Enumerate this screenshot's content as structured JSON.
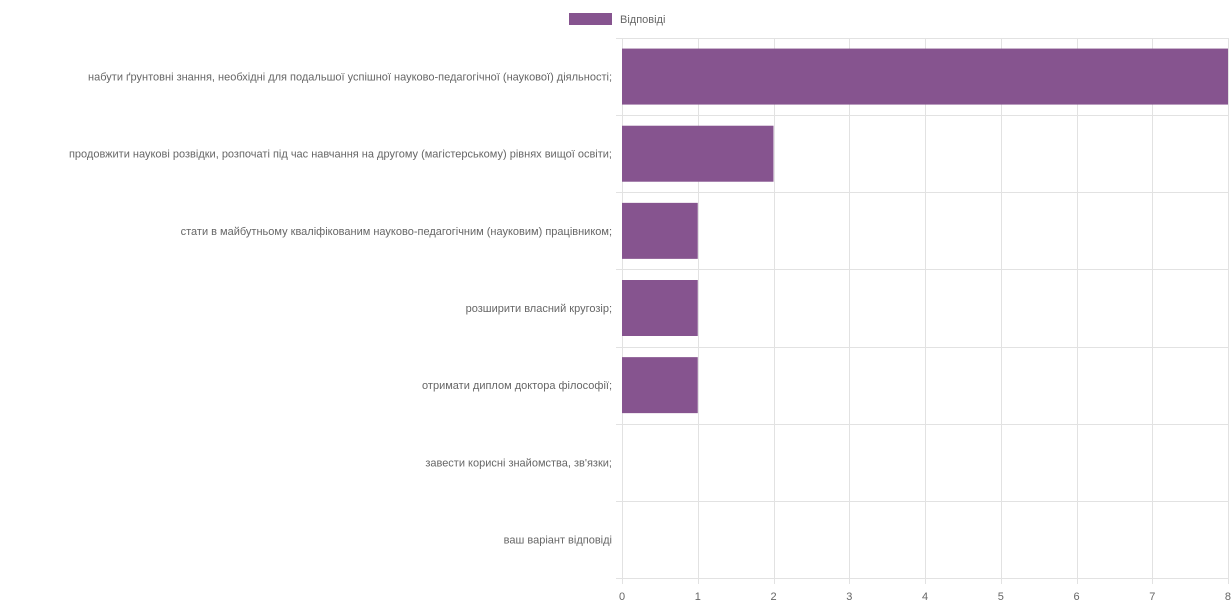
{
  "chart_data": {
    "type": "bar",
    "orientation": "horizontal",
    "categories": [
      "набути ґрунтовні знання, необхідні для подальшої успішної науково-педагогічної (наукової) діяльності;",
      "продовжити наукові розвідки, розпочаті під час навчання на другому (магістерському) рівнях вищої освіти;",
      "стати в майбутньому кваліфікованим науково-педагогічним (науковим) працівником;",
      "розширити власний кругозір;",
      "отримати диплом доктора філософії;",
      "завести корисні знайомства, зв'язки;",
      "ваш варіант відповіді"
    ],
    "series": [
      {
        "name": "Відповіді",
        "values": [
          8,
          2,
          1,
          1,
          1,
          0,
          0
        ],
        "color": "#86548f"
      }
    ],
    "xlim": [
      0,
      8
    ],
    "xticks": [
      0,
      1,
      2,
      3,
      4,
      5,
      6,
      7,
      8
    ],
    "grid": true,
    "legend_position": "top-center",
    "title": "",
    "xlabel": "",
    "ylabel": ""
  },
  "colors": {
    "bar": "#86548f",
    "grid": "#e2e2e2",
    "label": "#666666"
  }
}
